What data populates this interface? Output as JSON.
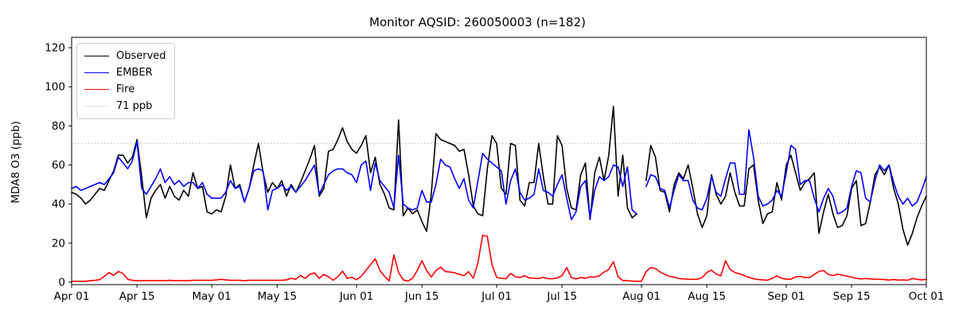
{
  "title": "Monitor AQSID: 260050003 (n=182)",
  "ylabel": "MDA8 O3 (ppb)",
  "chart_data": {
    "type": "line",
    "title": "Monitor AQSID: 260050003 (n=182)",
    "xlabel": "",
    "ylabel": "MDA8 O3 (ppb)",
    "x_range": "daily values, Apr 01 to Oct 01",
    "n_label": 182,
    "ylim": [
      -1.2,
      125.3
    ],
    "yticks": [
      0,
      20,
      40,
      60,
      80,
      100,
      120
    ],
    "xticks": [
      {
        "day": 0,
        "label": "Apr 01"
      },
      {
        "day": 14,
        "label": "Apr 15"
      },
      {
        "day": 30,
        "label": "May 01"
      },
      {
        "day": 44,
        "label": "May 15"
      },
      {
        "day": 61,
        "label": "Jun 01"
      },
      {
        "day": 75,
        "label": "Jun 15"
      },
      {
        "day": 91,
        "label": "Jul 01"
      },
      {
        "day": 105,
        "label": "Jul 15"
      },
      {
        "day": 122,
        "label": "Aug 01"
      },
      {
        "day": 136,
        "label": "Aug 15"
      },
      {
        "day": 153,
        "label": "Sep 01"
      },
      {
        "day": 167,
        "label": "Sep 15"
      },
      {
        "day": 183,
        "label": "Oct 01"
      }
    ],
    "threshold": {
      "value": 71,
      "label": "71 ppb",
      "color": "#c8c8c8",
      "style": "dotted"
    },
    "legend_position": "upper left",
    "grid": false,
    "series": [
      {
        "name": "Observed",
        "color": "#000000",
        "values": [
          46,
          45,
          43,
          40,
          42,
          45,
          48,
          47,
          52,
          57,
          65,
          65,
          61,
          64,
          73,
          54,
          33,
          43,
          47,
          50,
          43,
          49,
          44,
          42,
          47,
          44,
          56,
          48,
          49,
          36,
          35,
          37,
          36,
          44,
          60,
          48,
          50,
          41,
          48,
          60,
          71,
          56,
          46,
          51,
          48,
          52,
          44,
          50,
          46,
          51,
          57,
          63,
          70,
          44,
          48,
          67,
          68,
          73,
          79,
          72,
          68,
          66,
          70,
          75,
          56,
          64,
          50,
          45,
          38,
          37,
          83,
          34,
          38,
          35,
          37,
          31,
          26,
          45,
          76,
          73,
          72,
          71,
          70,
          67,
          68,
          55,
          39,
          35,
          34,
          58,
          75,
          71,
          48,
          45,
          71,
          70,
          42,
          39,
          51,
          51,
          71,
          54,
          40,
          40,
          75,
          70,
          48,
          38,
          37,
          55,
          61,
          32,
          56,
          64,
          52,
          65,
          90,
          44,
          65,
          38,
          33,
          35,
          null,
          52,
          70,
          64,
          47,
          46,
          36,
          50,
          56,
          53,
          60,
          48,
          35,
          28,
          34,
          55,
          45,
          40,
          44,
          56,
          46,
          39,
          39,
          58,
          60,
          42,
          30,
          35,
          36,
          51,
          42,
          60,
          65,
          56,
          47,
          51,
          53,
          56,
          25,
          36,
          45,
          35,
          28,
          29,
          34,
          48,
          52,
          29,
          30,
          41,
          55,
          59,
          55,
          60,
          48,
          40,
          27,
          19,
          25,
          33,
          39,
          44
        ]
      },
      {
        "name": "EMBER",
        "color": "#0000ff",
        "values": [
          48,
          49,
          47,
          48,
          49,
          50,
          51,
          50,
          53,
          56,
          64,
          61,
          58,
          62,
          72,
          48,
          45,
          49,
          53,
          58,
          51,
          54,
          50,
          52,
          49,
          51,
          51,
          48,
          51,
          45,
          43,
          43,
          43,
          46,
          52,
          48,
          49,
          41,
          48,
          57,
          58,
          57,
          37,
          47,
          48,
          50,
          47,
          49,
          46,
          49,
          52,
          56,
          60,
          45,
          50,
          55,
          57,
          58,
          58,
          56,
          55,
          51,
          60,
          62,
          47,
          61,
          52,
          49,
          46,
          38,
          65,
          40,
          38,
          37,
          38,
          47,
          41,
          41,
          50,
          63,
          60,
          59,
          53,
          48,
          53,
          42,
          38,
          52,
          66,
          63,
          61,
          59,
          57,
          40,
          52,
          58,
          46,
          42,
          43,
          45,
          58,
          47,
          46,
          44,
          50,
          55,
          43,
          32,
          36,
          49,
          52,
          33,
          47,
          54,
          52,
          54,
          60,
          59,
          49,
          59,
          37,
          35,
          null,
          49,
          55,
          54,
          48,
          47,
          38,
          47,
          55,
          52,
          52,
          42,
          38,
          37,
          43,
          54,
          46,
          44,
          53,
          61,
          61,
          45,
          45,
          78,
          64,
          44,
          39,
          40,
          42,
          47,
          44,
          56,
          70,
          68,
          50,
          52,
          52,
          43,
          36,
          43,
          48,
          44,
          35,
          36,
          38,
          49,
          57,
          56,
          43,
          41,
          52,
          60,
          57,
          60,
          51,
          44,
          40,
          43,
          39,
          41,
          47,
          54
        ]
      },
      {
        "name": "Fire",
        "color": "#ff0000",
        "values": [
          0.5,
          0.5,
          0.5,
          0.5,
          0.8,
          1,
          1.3,
          3,
          5,
          3.5,
          5.5,
          4.5,
          1.5,
          1,
          0.8,
          0.8,
          0.8,
          0.8,
          0.8,
          0.8,
          0.8,
          1,
          0.8,
          0.8,
          0.8,
          0.8,
          1,
          1,
          1,
          1,
          1,
          1.2,
          1.5,
          1.2,
          1,
          1,
          1,
          0.8,
          1,
          1,
          1,
          1,
          1,
          1,
          1,
          1,
          1.2,
          2,
          1.5,
          3.5,
          2,
          4,
          4.8,
          2,
          4,
          2.8,
          1,
          2.8,
          5.7,
          2,
          2.5,
          1.3,
          3,
          6,
          9,
          12,
          6,
          3,
          0.7,
          14,
          5,
          1.2,
          0.6,
          2,
          6,
          11,
          6,
          2.7,
          6,
          7.7,
          5.5,
          5.2,
          4.9,
          4,
          3.4,
          5.4,
          2,
          10,
          24,
          23.5,
          9,
          2.5,
          2,
          1.8,
          4.5,
          2.8,
          2.4,
          3.3,
          2.2,
          2,
          1.9,
          2.5,
          1.8,
          1.8,
          2.2,
          3.3,
          7.5,
          2.4,
          1.7,
          2.4,
          2,
          2.8,
          2.6,
          3.3,
          5.2,
          6.5,
          10.5,
          2.8,
          0.9,
          0.8,
          0.6,
          0.5,
          0.5,
          5.5,
          7.5,
          7,
          5.2,
          4,
          3,
          2.6,
          1.9,
          1.7,
          1.5,
          1.5,
          1.5,
          2.4,
          5,
          6.2,
          4.2,
          3.3,
          11,
          6.5,
          5,
          4.3,
          3.4,
          2.5,
          1.8,
          1.4,
          1.2,
          1,
          2,
          3.2,
          2,
          1.6,
          1.5,
          2.8,
          3,
          2.4,
          2.4,
          4,
          5.5,
          6,
          4,
          3.4,
          4.1,
          3.6,
          3.1,
          2.6,
          2,
          1.7,
          1.9,
          1.7,
          1.5,
          1.5,
          1.4,
          1.1,
          1.4,
          1.1,
          1.2,
          1,
          1.9,
          1.5,
          1.2,
          1.5
        ]
      }
    ]
  }
}
